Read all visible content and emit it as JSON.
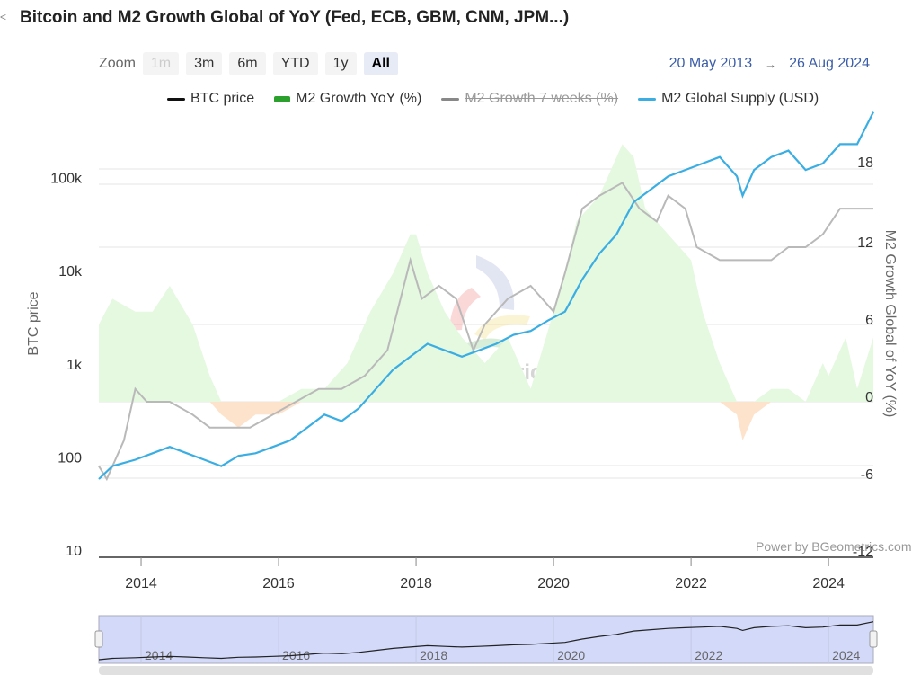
{
  "header": {
    "back_glyph": "<",
    "title": "Bitcoin and M2 Growth Global of YoY (Fed, ECB, GBM, CNM, JPM...)"
  },
  "zoom": {
    "label": "Zoom",
    "buttons": [
      {
        "label": "1m",
        "state": "disabled"
      },
      {
        "label": "3m",
        "state": "normal"
      },
      {
        "label": "6m",
        "state": "normal"
      },
      {
        "label": "YTD",
        "state": "normal"
      },
      {
        "label": "1y",
        "state": "normal"
      },
      {
        "label": "All",
        "state": "active"
      }
    ]
  },
  "range": {
    "from": "20 May 2013",
    "arrow": "→",
    "to": "26 Aug 2024"
  },
  "legend": [
    {
      "label": "BTC price",
      "color": "#111111",
      "symbol": "line",
      "hidden": false
    },
    {
      "label": "M2 Growth YoY (%)",
      "color": "#2ca02c",
      "symbol": "bar",
      "hidden": false
    },
    {
      "label": "M2 Growth 7 weeks (%)",
      "color": "#888888",
      "symbol": "line",
      "hidden": true
    },
    {
      "label": "M2 Global Supply (USD)",
      "color": "#3aaee3",
      "symbol": "line",
      "hidden": false
    }
  ],
  "watermark": "BGeometrics",
  "credit": "Power by BGeometrics.com",
  "colors": {
    "btc_line": "#3aaee3",
    "m2_7w_line": "#b9b9b9",
    "m2_pos_fill": "#e5f8e0",
    "m2_neg_fill": "#fde3cc",
    "grid": "#e6e6e6",
    "navigator_bg": "#d3d9f9"
  },
  "chart_data": {
    "type": "line",
    "x_range": [
      "2013-05-20",
      "2024-08-26"
    ],
    "x_ticks": [
      "2014",
      "2016",
      "2018",
      "2020",
      "2022",
      "2024"
    ],
    "y_left": {
      "label": "BTC price",
      "scale": "log",
      "ticks": [
        "10",
        "100",
        "1k",
        "10k",
        "100k"
      ],
      "tick_values": [
        10,
        100,
        1000,
        10000,
        100000
      ]
    },
    "y_right": {
      "label": "M2 Growth Global of YoY (%)",
      "ticks": [
        "-12",
        "-6",
        "0",
        "6",
        "12",
        "18"
      ],
      "tick_values": [
        -12,
        -6,
        0,
        6,
        12,
        18
      ]
    },
    "series": [
      {
        "name": "M2 Growth YoY (%)",
        "axis": "right",
        "type": "area",
        "x": [
          "2013-05-20",
          "2013-08",
          "2013-12",
          "2014-03",
          "2014-06",
          "2014-10",
          "2015-01",
          "2015-03",
          "2015-06",
          "2015-09",
          "2016-01",
          "2016-05",
          "2016-09",
          "2017-01",
          "2017-05",
          "2017-09",
          "2017-12",
          "2018-01",
          "2018-03",
          "2018-06",
          "2018-09",
          "2019-01",
          "2019-05",
          "2019-09",
          "2020-01",
          "2020-03",
          "2020-05",
          "2020-09",
          "2021-01",
          "2021-03",
          "2021-05",
          "2021-09",
          "2022-01",
          "2022-03",
          "2022-06",
          "2022-09",
          "2022-10",
          "2022-12",
          "2023-03",
          "2023-06",
          "2023-09",
          "2023-12",
          "2024-01",
          "2024-04",
          "2024-06",
          "2024-08-26"
        ],
        "values": [
          6,
          8,
          7,
          7,
          9,
          6,
          2,
          -1,
          -2,
          -1,
          -1,
          1,
          1,
          3,
          7,
          10,
          13,
          13,
          10,
          7,
          5,
          3,
          5,
          1,
          7,
          10,
          14,
          16,
          20,
          19,
          15,
          13,
          11,
          7,
          3,
          -1,
          -3,
          -1,
          1,
          1,
          0,
          3,
          2,
          5,
          1,
          5
        ]
      },
      {
        "name": "M2 Growth 7 weeks (%)",
        "axis": "right",
        "type": "line",
        "x": [
          "2013-05-20",
          "2013-07",
          "2013-10",
          "2013-12",
          "2014-02",
          "2014-06",
          "2014-10",
          "2015-01",
          "2015-04",
          "2015-08",
          "2015-12",
          "2016-04",
          "2016-08",
          "2016-12",
          "2017-04",
          "2017-08",
          "2017-12",
          "2018-02",
          "2018-05",
          "2018-08",
          "2018-11",
          "2019-01",
          "2019-05",
          "2019-09",
          "2020-01",
          "2020-03",
          "2020-06",
          "2020-09",
          "2021-01",
          "2021-04",
          "2021-07",
          "2021-09",
          "2021-12",
          "2022-02",
          "2022-06",
          "2022-10",
          "2022-12",
          "2023-03",
          "2023-06",
          "2023-09",
          "2023-12",
          "2024-03",
          "2024-05",
          "2024-08-26"
        ],
        "values": [
          -5,
          -6,
          -3,
          1,
          0,
          0,
          -1,
          -2,
          -2,
          -2,
          -1,
          0,
          1,
          1,
          2,
          4,
          11,
          8,
          9,
          8,
          4,
          6,
          8,
          9,
          7,
          10,
          15,
          16,
          17,
          15,
          14,
          16,
          15,
          12,
          11,
          11,
          11,
          11,
          12,
          12,
          13,
          15,
          15,
          15
        ]
      },
      {
        "name": "M2 Global Supply (USD)",
        "axis": "right",
        "type": "line",
        "x": [
          "2013-05-20",
          "2013-08",
          "2013-12",
          "2014-03",
          "2014-06",
          "2014-09",
          "2014-12",
          "2015-03",
          "2015-06",
          "2015-09",
          "2015-12",
          "2016-03",
          "2016-06",
          "2016-09",
          "2016-12",
          "2017-03",
          "2017-06",
          "2017-09",
          "2017-12",
          "2018-03",
          "2018-06",
          "2018-09",
          "2018-12",
          "2019-03",
          "2019-06",
          "2019-09",
          "2019-12",
          "2020-03",
          "2020-06",
          "2020-09",
          "2020-12",
          "2021-03",
          "2021-06",
          "2021-09",
          "2021-12",
          "2022-03",
          "2022-06",
          "2022-09",
          "2022-10",
          "2022-12",
          "2023-03",
          "2023-06",
          "2023-09",
          "2023-12",
          "2024-03",
          "2024-06",
          "2024-08-26"
        ],
        "values": [
          -6,
          -5,
          -4.5,
          -4,
          -3.5,
          -4,
          -4.5,
          -5,
          -4.2,
          -4,
          -3.5,
          -3,
          -2,
          -1,
          -1.5,
          -0.5,
          1,
          2.5,
          3.5,
          4.5,
          4,
          3.5,
          4,
          4.5,
          5.2,
          5.5,
          6.3,
          7,
          9.5,
          11.5,
          13,
          15.5,
          16.5,
          17.5,
          18,
          18.5,
          19,
          17.5,
          16,
          18,
          19,
          19.5,
          18,
          18.5,
          20,
          20,
          22.5
        ]
      }
    ]
  }
}
